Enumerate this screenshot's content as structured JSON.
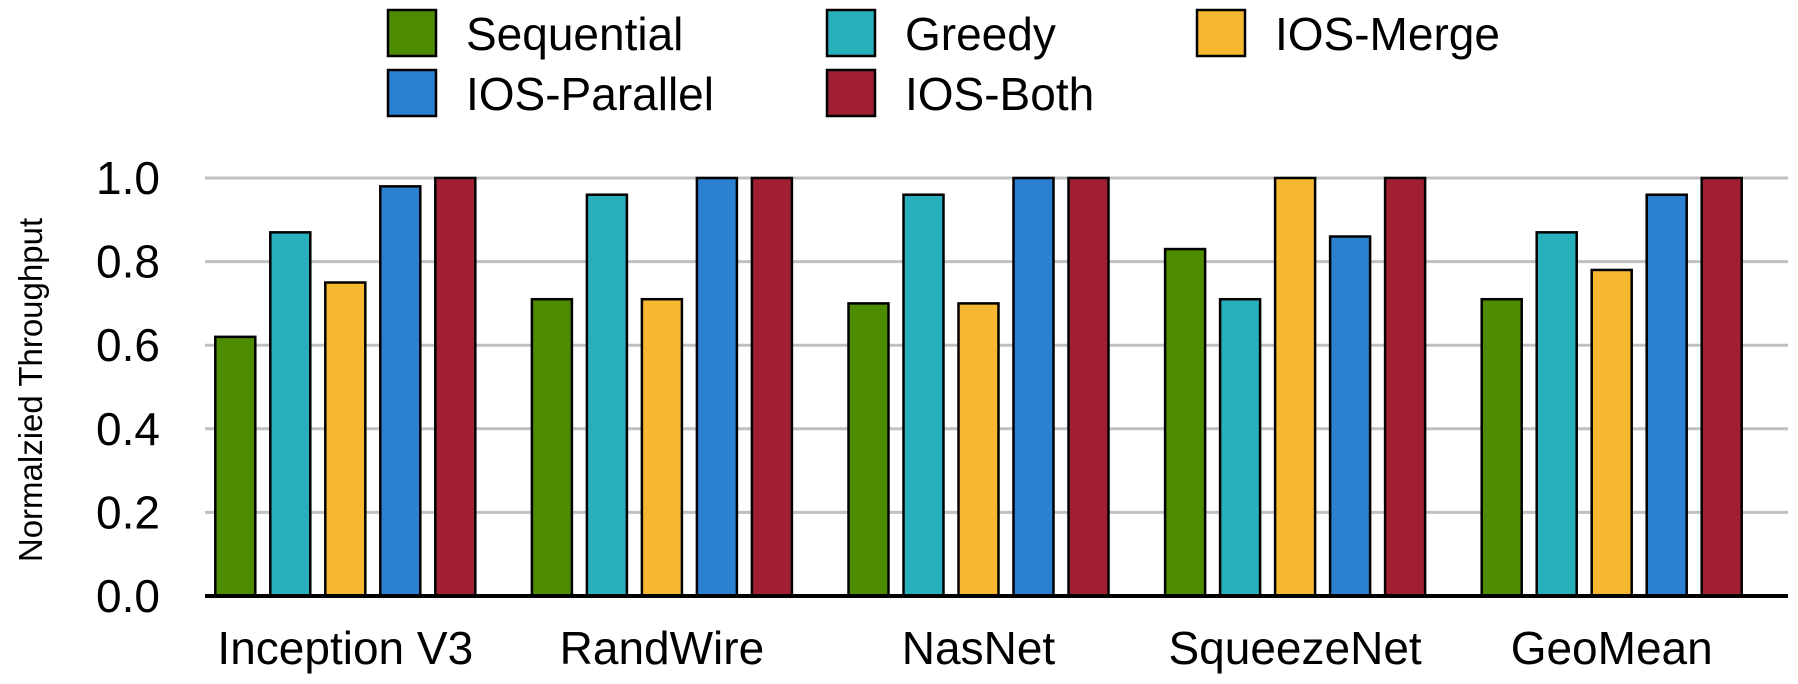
{
  "chart_data": {
    "type": "bar",
    "title": "",
    "xlabel": "",
    "ylabel": "Normalzied Throughput",
    "ylim": [
      0,
      1.0
    ],
    "yticks": [
      "0.0",
      "0.2",
      "0.4",
      "0.6",
      "0.8",
      "1.0"
    ],
    "grid": true,
    "legend_position": "top",
    "categories": [
      "Inception V3",
      "RandWire",
      "NasNet",
      "SqueezeNet",
      "GeoMean"
    ],
    "series": [
      {
        "name": "Sequential",
        "color": "#4d8c00",
        "values": [
          0.62,
          0.71,
          0.7,
          0.83,
          0.71
        ]
      },
      {
        "name": "Greedy",
        "color": "#27b0bb",
        "values": [
          0.87,
          0.96,
          0.96,
          0.71,
          0.87
        ]
      },
      {
        "name": "IOS-Merge",
        "color": "#f6b830",
        "values": [
          0.75,
          0.71,
          0.7,
          1.0,
          0.78
        ]
      },
      {
        "name": "IOS-Parallel",
        "color": "#2c80d0",
        "values": [
          0.98,
          1.0,
          1.0,
          0.86,
          0.96
        ]
      },
      {
        "name": "IOS-Both",
        "color": "#a11f33",
        "values": [
          1.0,
          1.0,
          1.0,
          1.0,
          1.0
        ]
      }
    ]
  }
}
